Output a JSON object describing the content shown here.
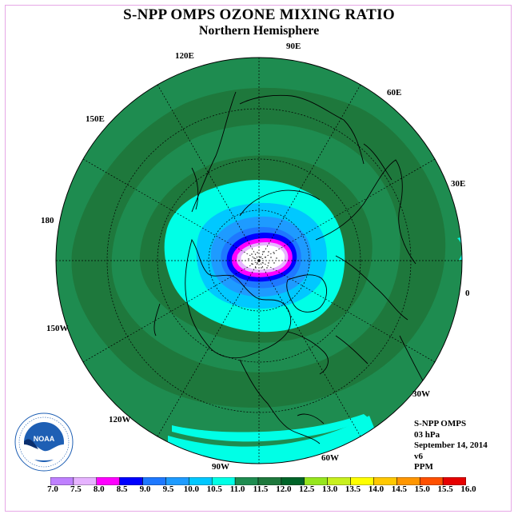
{
  "title": "S-NPP OMPS OZONE MIXING RATIO",
  "subtitle": "Northern Hemisphere",
  "longitude_labels": [
    "90E",
    "60E",
    "30E",
    "0",
    "30W",
    "60W",
    "90W",
    "120W",
    "150W",
    "180",
    "150E",
    "120E"
  ],
  "info": {
    "instrument": "S-NPP OMPS",
    "level": "03 hPa",
    "date": "September 14, 2014",
    "version": "v6",
    "units": "PPM"
  },
  "logo": {
    "text": "NOAA",
    "ring_text": "NATIONAL OCEANIC AND ATMOSPHERIC ADMINISTRATION · U.S. DEPARTMENT OF COMMERCE"
  },
  "colorbar": {
    "ticks": [
      "7.0",
      "7.5",
      "8.0",
      "8.5",
      "9.0",
      "9.5",
      "10.0",
      "10.5",
      "11.0",
      "11.5",
      "12.0",
      "12.5",
      "13.0",
      "13.5",
      "14.0",
      "14.5",
      "15.0",
      "15.5",
      "16.0"
    ],
    "colors": [
      "#bf80ff",
      "#e6b3ff",
      "#ff00ff",
      "#0000ff",
      "#1e78ff",
      "#1e9bff",
      "#00c8ff",
      "#00ffe6",
      "#1e8c50",
      "#1e783c",
      "#006428",
      "#96e61e",
      "#c8f01e",
      "#ffff00",
      "#ffc800",
      "#ff9600",
      "#ff5000",
      "#e60000",
      "#96461e"
    ]
  },
  "map_colors": {
    "outer": "#1e8c50",
    "ring": "#1e783c",
    "inner_band": "#1e8c50",
    "cyan": "#00ffe6",
    "light_blue": "#00c8ff",
    "mid_blue": "#1e9bff",
    "blue": "#1e78ff",
    "dark_blue": "#0000ff",
    "magenta": "#ff00ff",
    "lavender": "#e6b3ff",
    "white": "#ffffff"
  }
}
